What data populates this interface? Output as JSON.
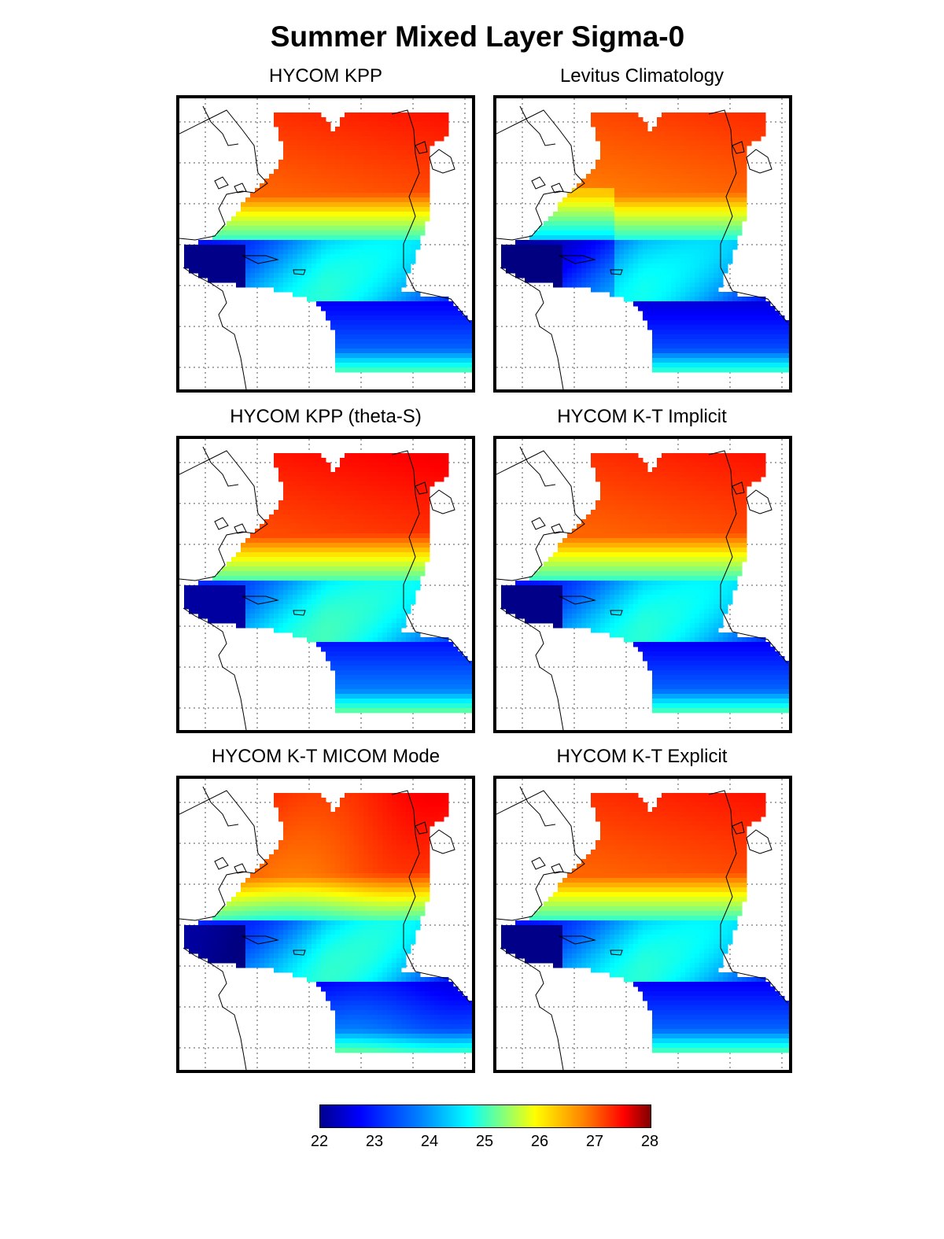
{
  "title": "Summer Mixed Layer Sigma-0",
  "panels": [
    {
      "title": "HYCOM KPP",
      "variant": 0
    },
    {
      "title": "Levitus Climatology",
      "variant": 1
    },
    {
      "title": "HYCOM KPP (theta-S)",
      "variant": 2
    },
    {
      "title": "HYCOM K-T Implicit",
      "variant": 3
    },
    {
      "title": "HYCOM K-T MICOM Mode",
      "variant": 4
    },
    {
      "title": "HYCOM K-T Explicit",
      "variant": 5
    }
  ],
  "colorbar": {
    "min": 22,
    "max": 28,
    "ticks": [
      "22",
      "23",
      "24",
      "25",
      "26",
      "27",
      "28"
    ],
    "colormap": "jet"
  }
}
